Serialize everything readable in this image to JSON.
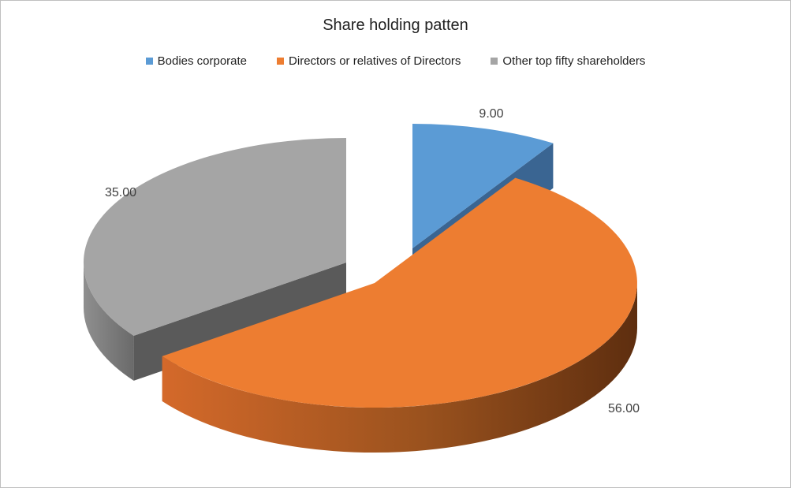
{
  "chart_data": {
    "type": "pie",
    "title": "Share holding patten",
    "legend_position": "top",
    "labels": [
      "Bodies corporate",
      "Directors or relatives of Directors",
      "Other top fifty shareholders"
    ],
    "values": [
      9.0,
      56.0,
      35.0
    ],
    "value_labels": [
      "9.00",
      "56.00",
      "35.00"
    ],
    "colors": [
      "#5B9BD5",
      "#ED7D31",
      "#A5A5A5"
    ],
    "side_colors": [
      "#3A6592",
      "#8B4A1C",
      "#5A5A5A"
    ],
    "style": "3d-exploded"
  }
}
